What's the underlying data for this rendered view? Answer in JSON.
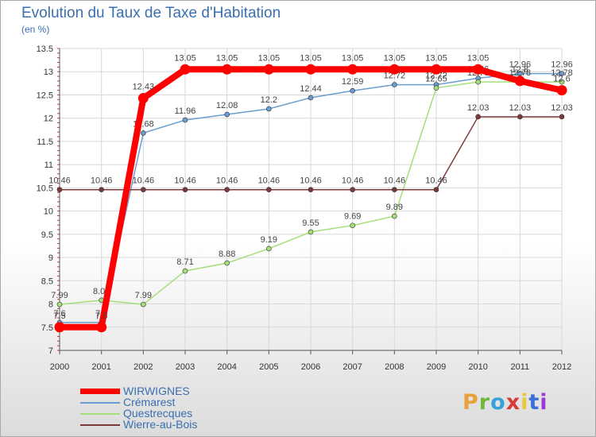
{
  "title": "Evolution du Taux de Taxe d'Habitation",
  "unit": "(en %)",
  "logo_text": "Proxiti",
  "logo_colors": [
    "#e8a23a",
    "#6fb83e",
    "#3aa0d8",
    "#d83a3a",
    "#e8c93a",
    "#3a6fd8",
    "#9c3ad8"
  ],
  "chart_data": {
    "type": "line",
    "x": [
      2000,
      2001,
      2002,
      2003,
      2004,
      2005,
      2006,
      2007,
      2008,
      2009,
      2010,
      2011,
      2012
    ],
    "ylim": [
      7,
      13.5
    ],
    "yticks": [
      7,
      7.5,
      8,
      8.5,
      9,
      9.5,
      10,
      10.5,
      11,
      11.5,
      12,
      12.5,
      13,
      13.5
    ],
    "grid": true,
    "legend_position": "bottom-left",
    "series": [
      {
        "name": "Crémarest",
        "color": "#6a9ed0",
        "values": [
          7.6,
          7.6,
          11.68,
          11.96,
          12.08,
          12.2,
          12.44,
          12.59,
          12.72,
          12.72,
          12.86,
          12.96,
          12.96
        ],
        "labels": [
          "7.6",
          "7.6",
          "11.68",
          "11.96",
          "12.08",
          "12.2",
          "12.44",
          "12.59",
          "12.72",
          "12.72",
          "12.86",
          "12.96",
          "12.96"
        ]
      },
      {
        "name": "Questrecques",
        "color": "#a6de7a",
        "values": [
          7.99,
          8.08,
          7.99,
          8.71,
          8.88,
          9.19,
          9.55,
          9.69,
          9.89,
          12.65,
          12.78,
          12.78,
          12.78
        ],
        "labels": [
          "7.99",
          "8.08",
          "7.99",
          "8.71",
          "8.88",
          "9.19",
          "9.55",
          "9.69",
          "9.89",
          "12.65",
          "12.78",
          "12.78",
          "12.78"
        ]
      },
      {
        "name": "Wierre-au-Bois",
        "color": "#7a3a3a",
        "values": [
          10.46,
          10.46,
          10.46,
          10.46,
          10.46,
          10.46,
          10.46,
          10.46,
          10.46,
          10.46,
          12.03,
          12.03,
          12.03
        ],
        "labels": [
          "10.46",
          "10.46",
          "10.46",
          "10.46",
          "10.46",
          "10.46",
          "10.46",
          "10.46",
          "10.46",
          "10.46",
          "12.03",
          "12.03",
          "12.03"
        ]
      },
      {
        "name": "WIRWIGNES",
        "color": "#ff0000",
        "values": [
          7.5,
          7.5,
          12.43,
          13.05,
          13.05,
          13.05,
          13.05,
          13.05,
          13.05,
          13.05,
          13.05,
          12.8,
          12.6
        ],
        "labels": [
          "7.5",
          "7.5",
          "12.43",
          "13.05",
          "13.05",
          "13.05",
          "13.05",
          "13.05",
          "13.05",
          "13.05",
          "13.05",
          "12.8",
          "12.6"
        ]
      }
    ],
    "legend_order": [
      "WIRWIGNES",
      "Crémarest",
      "Questrecques",
      "Wierre-au-Bois"
    ]
  }
}
